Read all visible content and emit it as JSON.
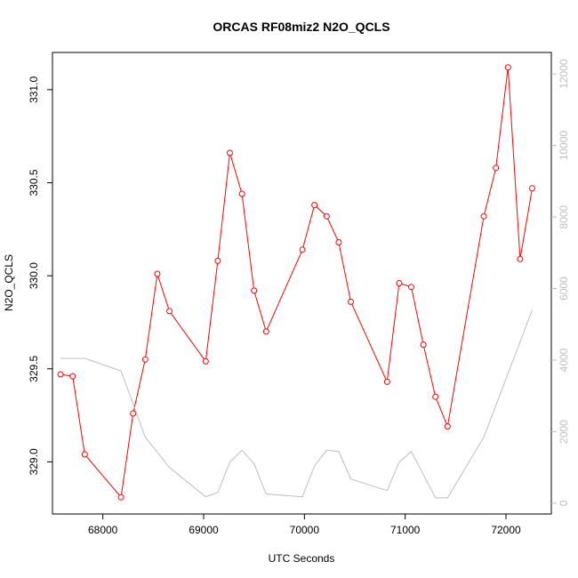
{
  "chart_data": {
    "type": "line",
    "title": "ORCAS RF08miz2 N2O_QCLS",
    "xlabel": "UTC Seconds",
    "ylabel": "N2O_QCLS",
    "xlim": [
      67500,
      72450
    ],
    "ylim": [
      328.72,
      331.2
    ],
    "y2lim": [
      -300,
      12600
    ],
    "x_ticks": [
      68000,
      69000,
      70000,
      71000,
      72000
    ],
    "y_ticks": [
      329.0,
      329.5,
      330.0,
      330.5,
      331.0
    ],
    "y2_ticks": [
      0,
      2000,
      4000,
      6000,
      8000,
      10000,
      12000
    ],
    "x_tick_labels": [
      "68000",
      "69000",
      "70000",
      "71000",
      "72000"
    ],
    "y_tick_labels": [
      "329.0",
      "329.5",
      "330.0",
      "330.5",
      "331.0"
    ],
    "y2_tick_labels": [
      "0",
      "2000",
      "4000",
      "6000",
      "8000",
      "10000",
      "12000"
    ],
    "grid": false,
    "series": [
      {
        "axis": "left",
        "color": "#ff0000",
        "marker": "open-circle",
        "x": [
          67580,
          67700,
          67820,
          68180,
          68300,
          68420,
          68540,
          68660,
          69020,
          69140,
          69260,
          69380,
          69500,
          69620,
          69980,
          70100,
          70220,
          70340,
          70460,
          70820,
          70940,
          71060,
          71180,
          71300,
          71420,
          71780,
          71900,
          72020,
          72140,
          72260
        ],
        "y": [
          329.47,
          329.46,
          329.04,
          328.81,
          329.26,
          329.55,
          330.01,
          329.81,
          329.54,
          330.08,
          330.66,
          330.44,
          329.92,
          329.7,
          330.14,
          330.38,
          330.32,
          330.18,
          329.86,
          329.43,
          329.96,
          329.94,
          329.63,
          329.35,
          329.19,
          330.32,
          330.58,
          331.12,
          330.09,
          330.47
        ]
      },
      {
        "axis": "right",
        "color": "#bebebe",
        "marker": "none",
        "x": [
          67580,
          67820,
          68180,
          68420,
          68660,
          69020,
          69140,
          69260,
          69380,
          69500,
          69620,
          69980,
          70100,
          70220,
          70340,
          70460,
          70820,
          70940,
          71060,
          71180,
          71300,
          71420,
          71780,
          72260
        ],
        "y": [
          4050,
          4050,
          3700,
          1850,
          1000,
          180,
          300,
          1150,
          1480,
          1100,
          260,
          180,
          1050,
          1480,
          1450,
          680,
          350,
          1150,
          1450,
          800,
          150,
          150,
          1850,
          5400
        ]
      }
    ]
  }
}
